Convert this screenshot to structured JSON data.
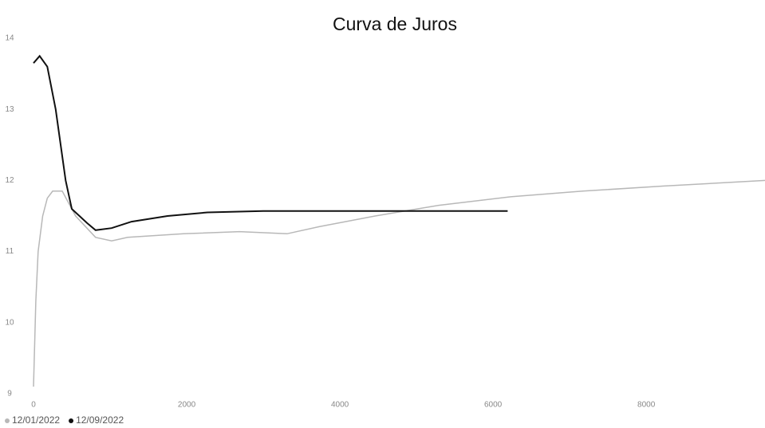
{
  "chart_data": {
    "type": "line",
    "title": "Curva de Juros",
    "xlim": [
      0,
      9550
    ],
    "xticks": [
      0,
      2000,
      4000,
      6000,
      8000
    ],
    "ylim": [
      9,
      14
    ],
    "yticks": [
      9,
      10,
      11,
      12,
      13,
      14
    ],
    "grid": false,
    "legend": "bottom-left",
    "series": [
      {
        "name": "12/01/2022",
        "color": "#b8b8b8",
        "x": [
          0,
          30,
          60,
          120,
          180,
          250,
          375,
          550,
          810,
          1020,
          1230,
          1960,
          2690,
          3310,
          3730,
          4460,
          5290,
          6230,
          7170,
          8210,
          9550
        ],
        "values": [
          9.1,
          10.3,
          11.0,
          11.5,
          11.75,
          11.85,
          11.85,
          11.5,
          11.2,
          11.15,
          11.2,
          11.25,
          11.28,
          11.25,
          11.35,
          11.5,
          11.65,
          11.77,
          11.85,
          11.92,
          12.0
        ]
      },
      {
        "name": "12/09/2022",
        "color": "#111111",
        "x": [
          0,
          80,
          180,
          290,
          420,
          500,
          700,
          810,
          1020,
          1280,
          1750,
          2270,
          3000,
          4500,
          6190
        ],
        "values": [
          13.65,
          13.75,
          13.6,
          13.0,
          12.0,
          11.6,
          11.4,
          11.3,
          11.33,
          11.42,
          11.5,
          11.55,
          11.57,
          11.57,
          11.57
        ]
      }
    ]
  }
}
